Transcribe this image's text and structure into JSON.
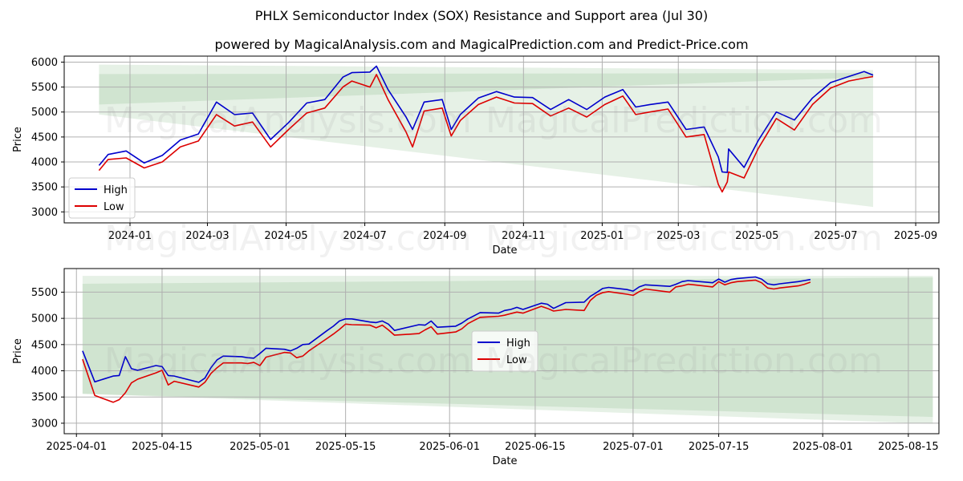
{
  "title": "PHLX Semiconductor Index (SOX) Resistance and Support area (Jul 30)",
  "subtitle": "powered by MagicalAnalysis.com and MagicalPrediction.com and Predict-Price.com",
  "watermarks": [
    "MagicalAnalysis.com",
    "MagicalPrediction.com"
  ],
  "colors": {
    "high": "#0000cc",
    "low": "#dd0000",
    "band": "#2e8b2e"
  },
  "chart_data": [
    {
      "type": "line",
      "xlabel": "Date",
      "ylabel": "Price",
      "x_ticks": [
        "2024-01",
        "2024-03",
        "2024-05",
        "2024-07",
        "2024-09",
        "2024-11",
        "2025-01",
        "2025-03",
        "2025-05",
        "2025-07",
        "2025-09"
      ],
      "y_ticks": [
        3000,
        3500,
        4000,
        4500,
        5000,
        5500,
        6000
      ],
      "xlim": [
        "2023-11-11",
        "2025-09-19"
      ],
      "ylim": [
        2780,
        6120
      ],
      "grid": true,
      "legend_position": "lower-left",
      "bands": [
        {
          "x": [
            "2023-12-08",
            "2025-07-30"
          ],
          "upper": [
            5950,
            5840
          ],
          "lower": [
            5150,
            5700
          ]
        },
        {
          "x": [
            "2023-12-08",
            "2025-07-30"
          ],
          "upper": [
            5760,
            5780
          ],
          "lower": [
            4950,
            3100
          ]
        }
      ],
      "dates": [
        "2023-12-08",
        "2023-12-15",
        "2023-12-29",
        "2024-01-12",
        "2024-01-26",
        "2024-02-09",
        "2024-02-23",
        "2024-03-08",
        "2024-03-22",
        "2024-04-05",
        "2024-04-19",
        "2024-05-03",
        "2024-05-17",
        "2024-05-31",
        "2024-06-14",
        "2024-06-21",
        "2024-07-05",
        "2024-07-10",
        "2024-07-19",
        "2024-08-02",
        "2024-08-07",
        "2024-08-16",
        "2024-08-30",
        "2024-09-06",
        "2024-09-13",
        "2024-09-27",
        "2024-10-11",
        "2024-10-25",
        "2024-11-08",
        "2024-11-22",
        "2024-12-06",
        "2024-12-20",
        "2025-01-03",
        "2025-01-17",
        "2025-01-27",
        "2025-02-07",
        "2025-02-21",
        "2025-03-07",
        "2025-03-21",
        "2025-04-01",
        "2025-04-04",
        "2025-04-08",
        "2025-04-09",
        "2025-04-21",
        "2025-05-02",
        "2025-05-16",
        "2025-05-30",
        "2025-06-13",
        "2025-06-27",
        "2025-07-11",
        "2025-07-23",
        "2025-07-30"
      ],
      "series": [
        {
          "name": "High",
          "values": [
            3930,
            4150,
            4220,
            3980,
            4130,
            4440,
            4560,
            5200,
            4950,
            4980,
            4450,
            4790,
            5180,
            5250,
            5700,
            5790,
            5800,
            5920,
            5450,
            4900,
            4650,
            5200,
            5250,
            4650,
            4950,
            5280,
            5410,
            5300,
            5290,
            5050,
            5250,
            5050,
            5300,
            5450,
            5100,
            5150,
            5200,
            4650,
            4700,
            4100,
            3800,
            3790,
            4260,
            3890,
            4430,
            5000,
            4840,
            5280,
            5590,
            5710,
            5810,
            5740
          ]
        },
        {
          "name": "Low",
          "values": [
            3830,
            4050,
            4080,
            3880,
            4000,
            4300,
            4420,
            4950,
            4720,
            4800,
            4300,
            4650,
            4980,
            5080,
            5500,
            5620,
            5500,
            5750,
            5250,
            4600,
            4300,
            5020,
            5080,
            4520,
            4830,
            5150,
            5300,
            5180,
            5170,
            4920,
            5080,
            4900,
            5150,
            5320,
            4950,
            5000,
            5060,
            4500,
            4550,
            3550,
            3400,
            3600,
            3800,
            3680,
            4270,
            4870,
            4640,
            5150,
            5480,
            5620,
            5680,
            5710
          ]
        }
      ]
    },
    {
      "type": "line",
      "xlabel": "Date",
      "ylabel": "Price",
      "x_ticks": [
        "2025-04-01",
        "2025-04-15",
        "2025-05-01",
        "2025-05-15",
        "2025-06-01",
        "2025-06-15",
        "2025-07-01",
        "2025-07-15",
        "2025-08-01",
        "2025-08-15"
      ],
      "y_ticks": [
        3000,
        3500,
        4000,
        4500,
        5000,
        5500
      ],
      "xlim": [
        "2025-03-30",
        "2025-08-20"
      ],
      "ylim": [
        2800,
        5950
      ],
      "grid": true,
      "legend_position": "center",
      "bands": [
        {
          "x": [
            "2025-04-02",
            "2025-08-19"
          ],
          "upper": [
            5810,
            5810
          ],
          "lower": [
            3560,
            2990
          ]
        },
        {
          "x": [
            "2025-04-02",
            "2025-08-19"
          ],
          "upper": [
            5660,
            5780
          ],
          "lower": [
            3560,
            3120
          ]
        }
      ],
      "dates": [
        "2025-04-02",
        "2025-04-04",
        "2025-04-07",
        "2025-04-08",
        "2025-04-09",
        "2025-04-10",
        "2025-04-11",
        "2025-04-14",
        "2025-04-15",
        "2025-04-16",
        "2025-04-17",
        "2025-04-21",
        "2025-04-22",
        "2025-04-23",
        "2025-04-24",
        "2025-04-25",
        "2025-04-28",
        "2025-04-29",
        "2025-04-30",
        "2025-05-01",
        "2025-05-02",
        "2025-05-05",
        "2025-05-06",
        "2025-05-07",
        "2025-05-08",
        "2025-05-09",
        "2025-05-12",
        "2025-05-13",
        "2025-05-14",
        "2025-05-15",
        "2025-05-16",
        "2025-05-19",
        "2025-05-20",
        "2025-05-21",
        "2025-05-22",
        "2025-05-23",
        "2025-05-27",
        "2025-05-28",
        "2025-05-29",
        "2025-05-30",
        "2025-06-02",
        "2025-06-03",
        "2025-06-04",
        "2025-06-05",
        "2025-06-06",
        "2025-06-09",
        "2025-06-10",
        "2025-06-11",
        "2025-06-12",
        "2025-06-13",
        "2025-06-16",
        "2025-06-17",
        "2025-06-18",
        "2025-06-20",
        "2025-06-23",
        "2025-06-24",
        "2025-06-25",
        "2025-06-26",
        "2025-06-27",
        "2025-06-30",
        "2025-07-01",
        "2025-07-02",
        "2025-07-03",
        "2025-07-07",
        "2025-07-08",
        "2025-07-09",
        "2025-07-10",
        "2025-07-11",
        "2025-07-14",
        "2025-07-15",
        "2025-07-16",
        "2025-07-17",
        "2025-07-18",
        "2025-07-21",
        "2025-07-22",
        "2025-07-23",
        "2025-07-24",
        "2025-07-25",
        "2025-07-28",
        "2025-07-29",
        "2025-07-30"
      ],
      "series": [
        {
          "name": "High",
          "values": [
            4380,
            3790,
            3900,
            3910,
            4270,
            4040,
            4010,
            4100,
            4080,
            3910,
            3900,
            3780,
            3860,
            4060,
            4210,
            4280,
            4270,
            4250,
            4240,
            4330,
            4430,
            4410,
            4380,
            4430,
            4500,
            4510,
            4770,
            4850,
            4950,
            4990,
            4990,
            4930,
            4920,
            4950,
            4890,
            4770,
            4880,
            4870,
            4950,
            4830,
            4850,
            4910,
            4990,
            5050,
            5110,
            5100,
            5150,
            5170,
            5210,
            5170,
            5290,
            5270,
            5190,
            5300,
            5310,
            5420,
            5490,
            5570,
            5590,
            5550,
            5520,
            5600,
            5640,
            5610,
            5650,
            5700,
            5720,
            5710,
            5680,
            5750,
            5690,
            5740,
            5760,
            5790,
            5750,
            5660,
            5640,
            5660,
            5700,
            5720,
            5740
          ]
        },
        {
          "name": "Low",
          "values": [
            4220,
            3530,
            3400,
            3450,
            3580,
            3770,
            3840,
            3960,
            4010,
            3730,
            3800,
            3690,
            3780,
            3950,
            4060,
            4150,
            4150,
            4140,
            4160,
            4100,
            4260,
            4350,
            4340,
            4250,
            4280,
            4380,
            4620,
            4700,
            4790,
            4890,
            4880,
            4870,
            4820,
            4870,
            4780,
            4680,
            4710,
            4780,
            4840,
            4700,
            4740,
            4800,
            4900,
            4960,
            5020,
            5040,
            5060,
            5090,
            5120,
            5100,
            5230,
            5190,
            5140,
            5170,
            5150,
            5340,
            5440,
            5490,
            5510,
            5460,
            5440,
            5510,
            5560,
            5500,
            5600,
            5620,
            5650,
            5640,
            5600,
            5700,
            5640,
            5680,
            5700,
            5730,
            5680,
            5580,
            5560,
            5580,
            5620,
            5650,
            5690
          ]
        }
      ]
    }
  ]
}
